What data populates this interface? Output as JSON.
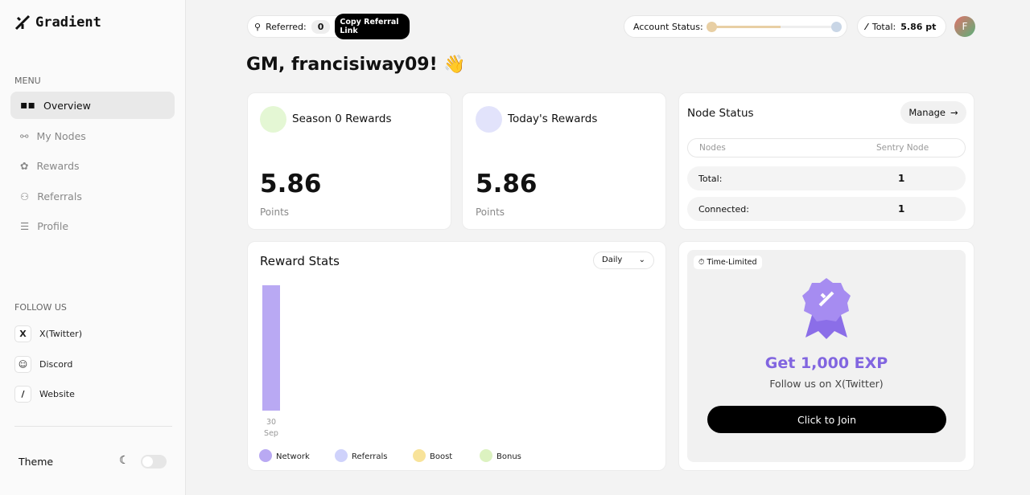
{
  "sidebar": {
    "logo": "Gradient",
    "menu_title": "MENU",
    "menu": [
      "Overview",
      "My Nodes",
      "Rewards",
      "Referrals",
      "Profile"
    ],
    "follow_title": "FOLLOW US",
    "follow": [
      "X(Twitter)",
      "Discord",
      "Website"
    ],
    "theme": "Theme"
  },
  "header": {
    "referred_label": "Referred:",
    "referred_count": 0,
    "copy_button": "Copy Referral Link",
    "account_status": "Account Status:",
    "total_label": "Total:",
    "total_value": "5.86 pt",
    "avatar": "F"
  },
  "greeting": "GM, francisiway09! 👋",
  "season_card": {
    "title": "Season 0 Rewards",
    "value": 5.86,
    "unit": "Points"
  },
  "today_card": {
    "title": "Today's Rewards",
    "value": 5.86,
    "unit": "Points"
  },
  "node_status": {
    "title": "Node Status",
    "manage": "Manage",
    "columns": [
      "Nodes",
      "Sentry Node"
    ],
    "rows": [
      [
        "Total:",
        1
      ],
      [
        "Connected:",
        1
      ]
    ]
  },
  "chart_data": {
    "type": "bar",
    "stacked": true,
    "title": "Reward Stats",
    "period": "Daily",
    "categories": [
      "30 Sep"
    ],
    "series": [
      {
        "name": "Network",
        "color": "#b9a9f3",
        "values": [
          5.86
        ]
      },
      {
        "name": "Referrals",
        "color": "#cfd2fb",
        "values": [
          0
        ]
      },
      {
        "name": "Boost",
        "color": "#f8e39a",
        "values": [
          0
        ]
      },
      {
        "name": "Bonus",
        "color": "#dcf2c0",
        "values": [
          0
        ]
      }
    ]
  },
  "promo": {
    "badge": "Time-Limited",
    "title": "Get 1,000 EXP",
    "subtitle": "Follow us on X(Twitter)",
    "button": "Click to Join"
  }
}
